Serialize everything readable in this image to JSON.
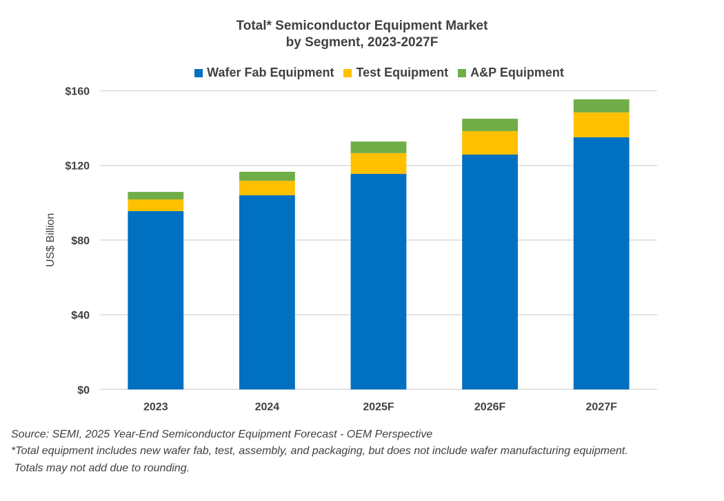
{
  "chart_data": {
    "type": "bar",
    "stacked": true,
    "title": [
      "Total* Semiconductor Equipment Market",
      "by Segment, 2023-2027F"
    ],
    "ylabel": "US$ Billion",
    "xlabel": "",
    "ylim": [
      0,
      160
    ],
    "yticks": [
      0,
      40,
      80,
      120,
      160
    ],
    "ytick_labels": [
      "$0",
      "$40",
      "$80",
      "$120",
      "$160"
    ],
    "grid": true,
    "legend_position": "top",
    "categories": [
      "2023",
      "2024",
      "2025F",
      "2026F",
      "2027F"
    ],
    "series": [
      {
        "name": "Wafer Fab Equipment",
        "color": "#0070C0",
        "values": [
          95.5,
          104.0,
          115.5,
          125.8,
          135.1
        ]
      },
      {
        "name": "Test Equipment",
        "color": "#FFC000",
        "values": [
          6.3,
          7.8,
          11.1,
          12.6,
          13.3
        ]
      },
      {
        "name": "A&P Equipment",
        "color": "#70AD47",
        "values": [
          4.0,
          4.8,
          6.2,
          6.6,
          7.0
        ]
      }
    ]
  },
  "notes": [
    "Source: SEMI, 2025 Year-End Semiconductor Equipment Forecast - OEM Perspective",
    "*Total equipment includes new wafer fab, test, assembly, and packaging, but does not include wafer manufacturing equipment.",
    " Totals may not add due to rounding."
  ]
}
